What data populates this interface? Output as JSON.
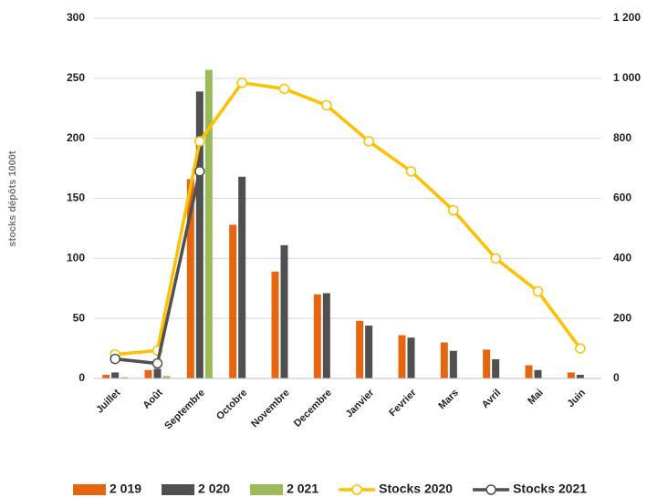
{
  "chart_data": {
    "type": "bar",
    "y_label": "stocks dépôts 1000t",
    "categories": [
      "Juillet",
      "Août",
      "Septembre",
      "Octobre",
      "Novembre",
      "Decembre",
      "Janvier",
      "Fevrier",
      "Mars",
      "Avril",
      "Mai",
      "Juin"
    ],
    "series": [
      {
        "name": "2 019",
        "type": "bar",
        "color": "#e8650f",
        "values": [
          3,
          7,
          166,
          128,
          89,
          70,
          48,
          36,
          30,
          24,
          11,
          5
        ]
      },
      {
        "name": "2 020",
        "type": "bar",
        "color": "#505050",
        "values": [
          5,
          8,
          239,
          168,
          111,
          71,
          44,
          34,
          23,
          16,
          7,
          3
        ]
      },
      {
        "name": "2 021",
        "type": "bar",
        "color": "#9bbb59",
        "values": [
          1,
          2,
          257,
          null,
          null,
          null,
          null,
          null,
          null,
          null,
          null,
          null
        ]
      },
      {
        "name": "Stocks 2020",
        "type": "line",
        "axis": "y2",
        "color": "#ffc000",
        "values": [
          80,
          93,
          790,
          985,
          965,
          910,
          790,
          690,
          560,
          400,
          290,
          100
        ]
      },
      {
        "name": "Stocks 2021",
        "type": "line",
        "axis": "y2",
        "color": "#505050",
        "values": [
          65,
          50,
          690,
          null,
          null,
          null,
          null,
          null,
          null,
          null,
          null,
          null
        ]
      }
    ],
    "ylim": [
      0,
      300
    ],
    "yticks": [
      0,
      50,
      100,
      150,
      200,
      250,
      300
    ],
    "y2lim": [
      0,
      1200
    ],
    "y2ticks": [
      0,
      200,
      400,
      600,
      800,
      {
        "value": 1000,
        "label": "1 000"
      },
      {
        "value": 1200,
        "label": "1 200"
      }
    ],
    "grid": true,
    "legend": "bottom"
  }
}
